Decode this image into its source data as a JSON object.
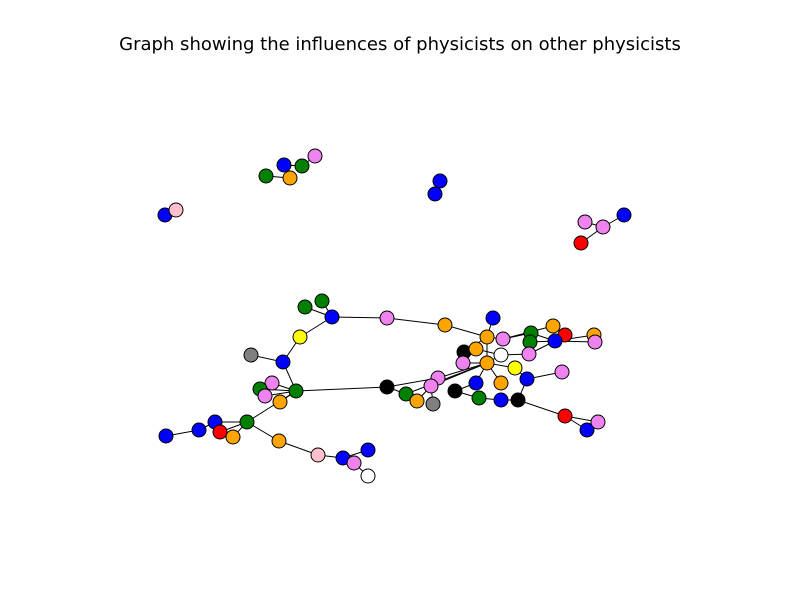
{
  "title": "Graph showing the influences of physicists on other physicists",
  "colors": {
    "blue": "#0000ff",
    "green": "#008000",
    "orange": "#ffa500",
    "violet": "#ee82ee",
    "pink": "#ffc0cb",
    "red": "#ff0000",
    "yellow": "#ffff00",
    "gray": "#808080",
    "black": "#000000",
    "white": "#ffffff"
  }
}
